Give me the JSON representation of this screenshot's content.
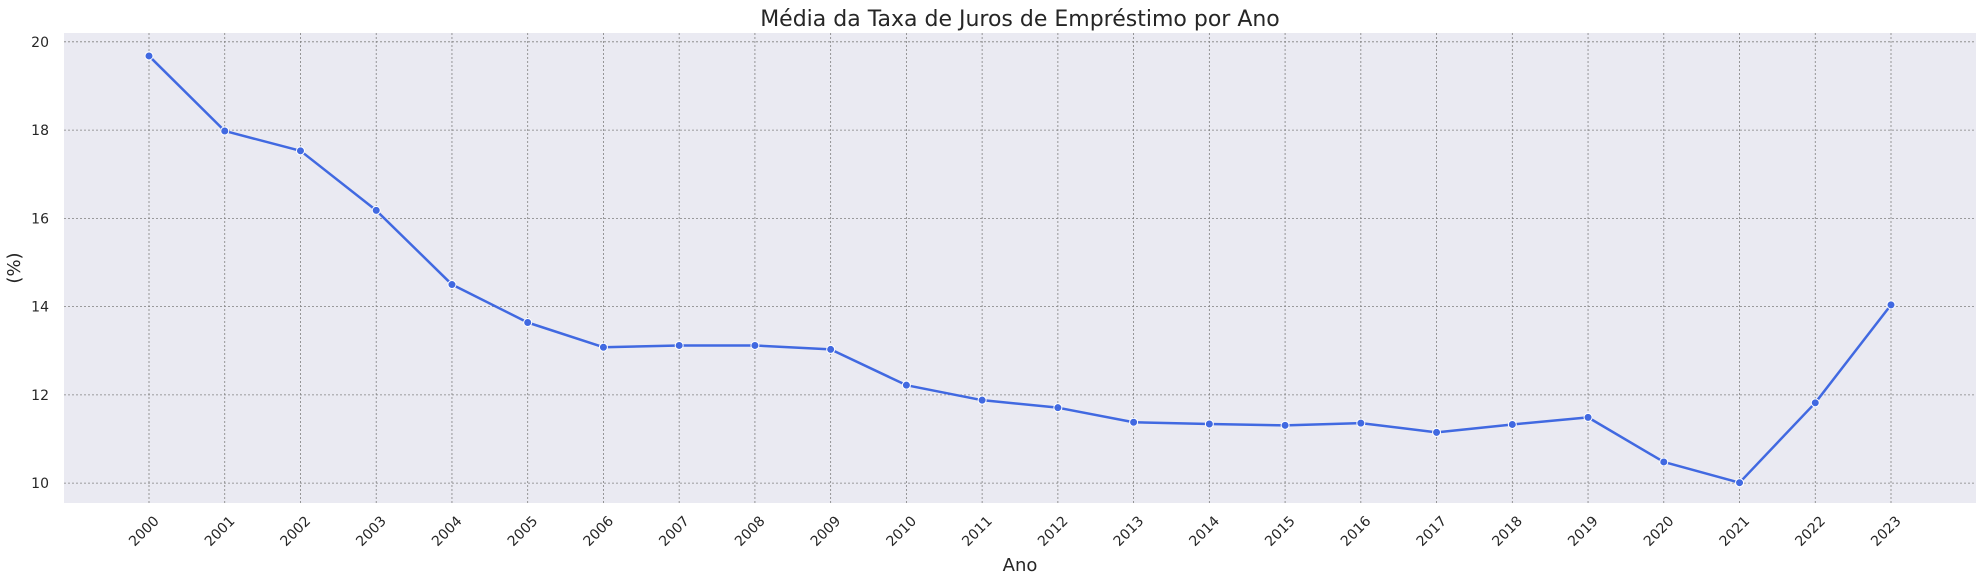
{
  "chart_data": {
    "type": "line",
    "title": "Média da Taxa de Juros de Empréstimo por Ano",
    "xlabel": "Ano",
    "ylabel": "(%)",
    "x": [
      "2000",
      "2001",
      "2002",
      "2003",
      "2004",
      "2005",
      "2006",
      "2007",
      "2008",
      "2009",
      "2010",
      "2011",
      "2012",
      "2013",
      "2014",
      "2015",
      "2016",
      "2017",
      "2018",
      "2019",
      "2020",
      "2021",
      "2022",
      "2023"
    ],
    "series": [
      {
        "values": [
          19.68,
          17.98,
          17.53,
          16.18,
          14.5,
          13.64,
          13.08,
          13.12,
          13.12,
          13.03,
          12.22,
          11.88,
          11.71,
          11.38,
          11.34,
          11.31,
          11.36,
          11.15,
          11.33,
          11.49,
          10.48,
          10.01,
          11.82,
          14.04
        ],
        "color": "#4169e1"
      }
    ],
    "ylim": [
      9.55,
      20.2
    ],
    "yticks": [
      "10",
      "12",
      "14",
      "16",
      "18",
      "20"
    ],
    "xtick_rotation": 45,
    "grid": true,
    "background_color": "#eaeaf2",
    "grid_color": "#808080"
  }
}
